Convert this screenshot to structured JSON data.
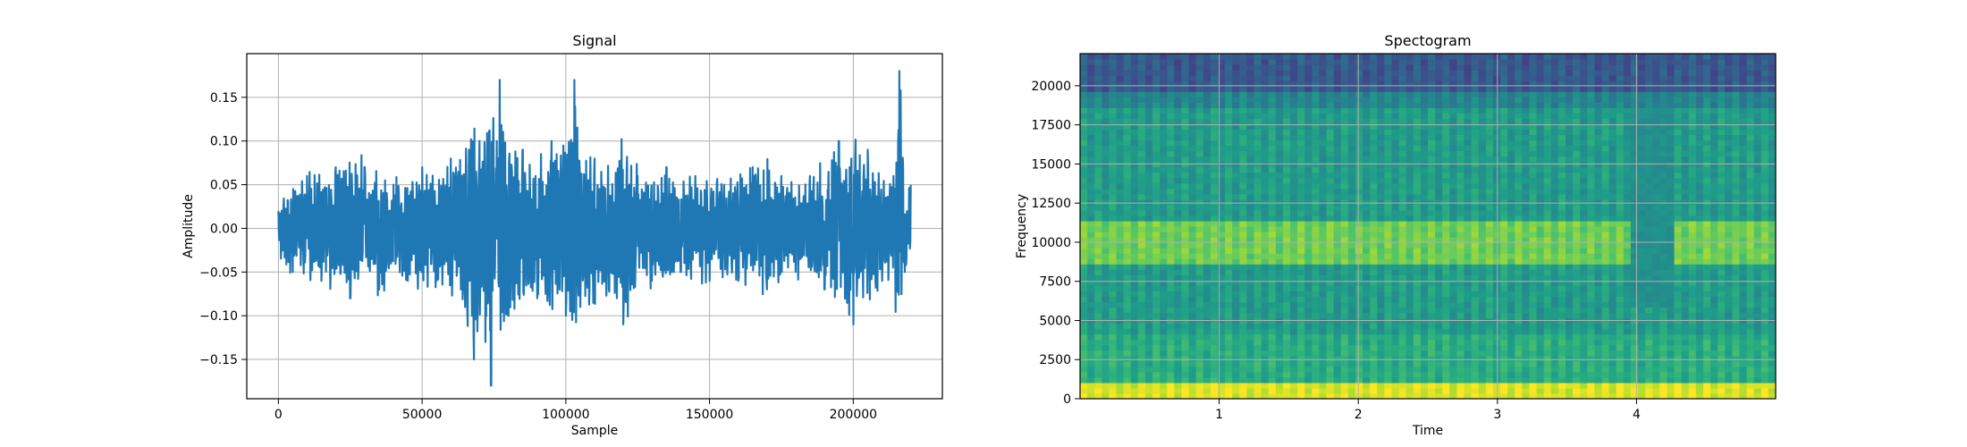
{
  "chart_data": [
    {
      "type": "line",
      "title": "Signal",
      "xlabel": "Sample",
      "ylabel": "Amplitude",
      "xlim": [
        -11000,
        231000
      ],
      "ylim": [
        -0.195,
        0.2
      ],
      "xticks": [
        0,
        50000,
        100000,
        150000,
        200000
      ],
      "xtick_labels": [
        "0",
        "50000",
        "100000",
        "150000",
        "200000"
      ],
      "yticks": [
        -0.15,
        -0.1,
        -0.05,
        0.0,
        0.05,
        0.1,
        0.15
      ],
      "ytick_labels": [
        "−0.15",
        "−0.10",
        "−0.05",
        "0.00",
        "0.05",
        "0.10",
        "0.15"
      ],
      "grid": true,
      "series": [
        {
          "color": "#1f77b4",
          "x": [
            0,
            5000,
            10000,
            15000,
            20000,
            25000,
            30000,
            35000,
            40000,
            45000,
            50000,
            55000,
            60000,
            65000,
            68000,
            70000,
            72000,
            74000,
            76000,
            77000,
            80000,
            85000,
            90000,
            95000,
            100000,
            103000,
            105000,
            110000,
            115000,
            120000,
            125000,
            130000,
            135000,
            140000,
            145000,
            150000,
            155000,
            160000,
            165000,
            170000,
            175000,
            180000,
            185000,
            190000,
            195000,
            200000,
            205000,
            210000,
            214000,
            216000,
            218000,
            220000
          ],
          "y": [
            0.02,
            -0.05,
            0.06,
            -0.06,
            0.07,
            -0.08,
            0.07,
            -0.07,
            0.05,
            -0.06,
            0.07,
            -0.06,
            0.08,
            -0.09,
            -0.15,
            0.1,
            -0.13,
            -0.18,
            0.1,
            0.17,
            -0.1,
            0.09,
            -0.08,
            0.1,
            -0.1,
            0.17,
            -0.09,
            0.08,
            -0.07,
            -0.11,
            0.06,
            -0.06,
            0.07,
            -0.05,
            0.06,
            -0.06,
            0.05,
            -0.06,
            0.07,
            -0.07,
            0.06,
            -0.05,
            0.06,
            -0.07,
            0.1,
            -0.11,
            0.09,
            -0.06,
            0.06,
            0.18,
            -0.05,
            0.05
          ]
        }
      ]
    },
    {
      "type": "heatmap",
      "title": "Spectogram",
      "xlabel": "Time",
      "ylabel": "Frequency",
      "xlim": [
        0,
        5
      ],
      "ylim": [
        0,
        22050
      ],
      "xticks": [
        1,
        2,
        3,
        4
      ],
      "xtick_labels": [
        "1",
        "2",
        "3",
        "4"
      ],
      "yticks": [
        0,
        2500,
        5000,
        7500,
        10000,
        12500,
        15000,
        17500,
        20000
      ],
      "ytick_labels": [
        "0",
        "2500",
        "5000",
        "7500",
        "10000",
        "12500",
        "15000",
        "17500",
        "20000"
      ],
      "grid": true,
      "colormap": "viridis",
      "description_values": {
        "bands": [
          {
            "from": 0,
            "to": 1000,
            "level": 0.95
          },
          {
            "from": 1000,
            "to": 4000,
            "level": 0.62
          },
          {
            "from": 4000,
            "to": 8500,
            "level": 0.55
          },
          {
            "from": 8500,
            "to": 11500,
            "level": 0.78
          },
          {
            "from": 11500,
            "to": 18500,
            "level": 0.55
          },
          {
            "from": 18500,
            "to": 19800,
            "level": 0.45
          },
          {
            "from": 19800,
            "to": 22050,
            "level": 0.28
          }
        ],
        "dip": {
          "time_from": 3.95,
          "time_to": 4.25,
          "level": 0.5
        }
      }
    }
  ]
}
